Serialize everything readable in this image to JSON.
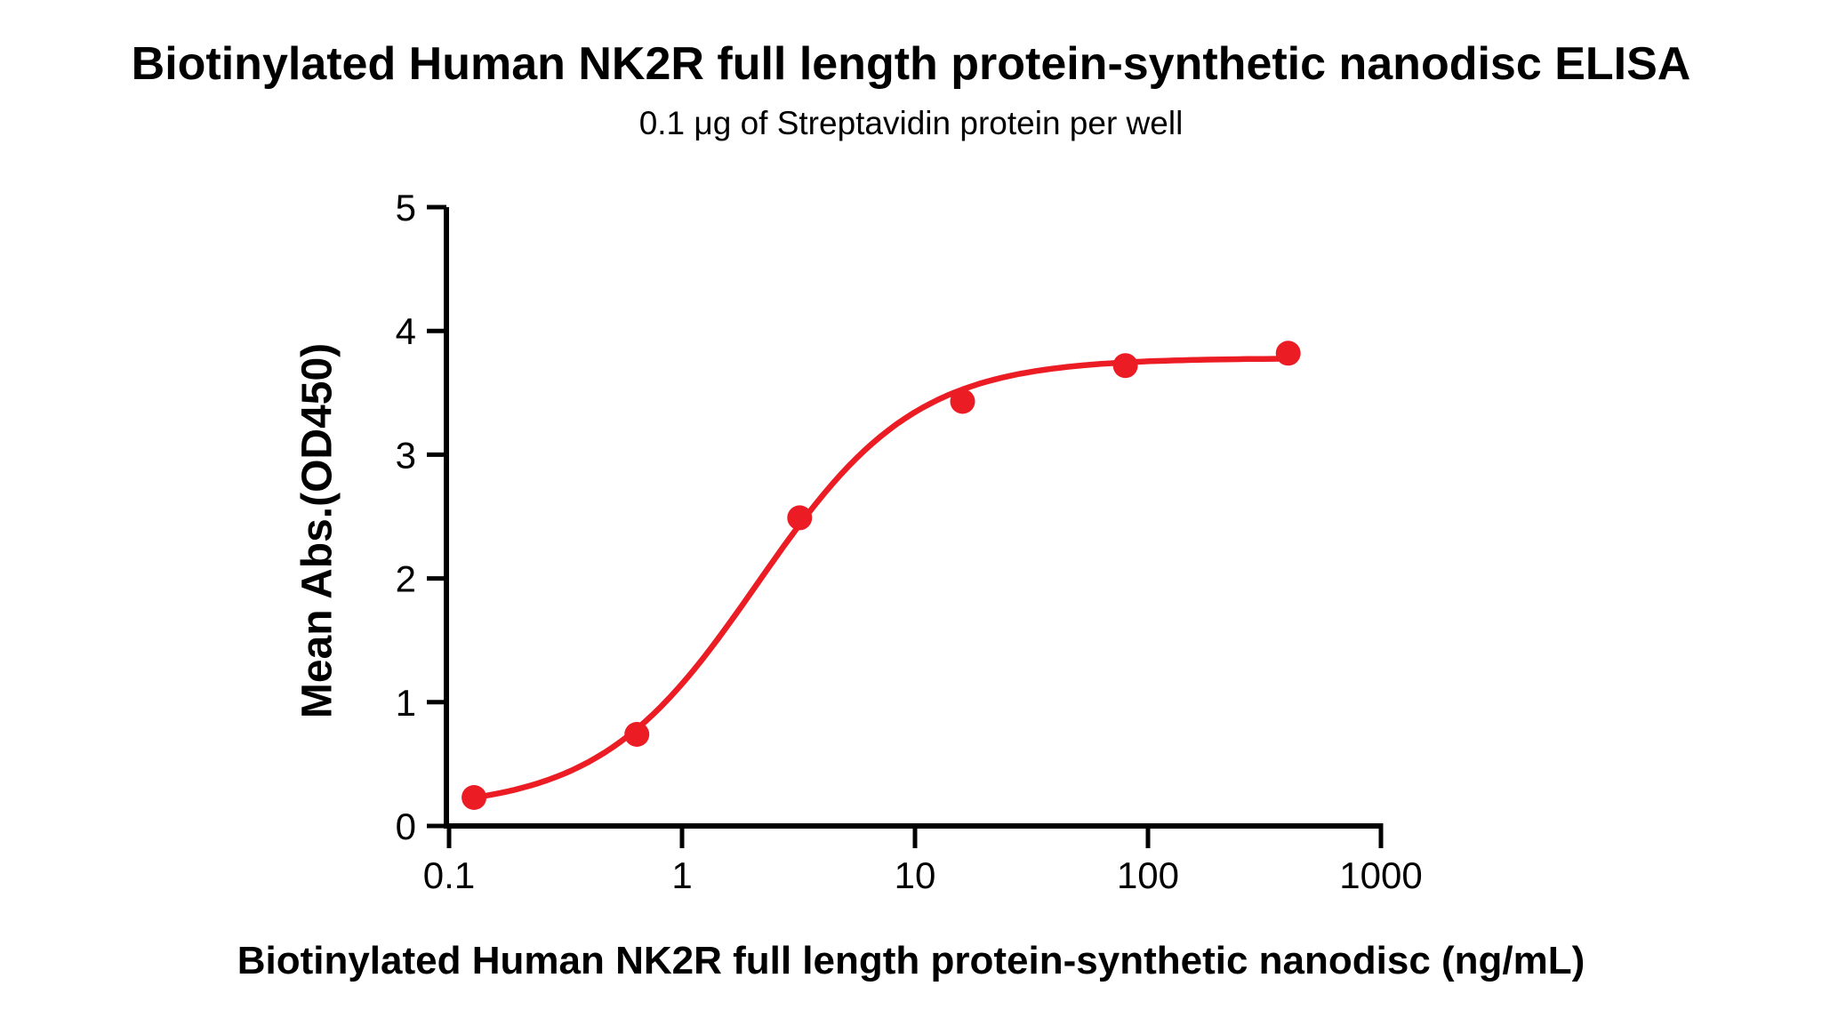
{
  "title": "Biotinylated Human NK2R full length protein-synthetic nanodisc ELISA",
  "subtitle": "0.1 μg of Streptavidin protein per well",
  "chart_data": {
    "type": "scatter",
    "title": "Biotinylated Human NK2R full length protein-synthetic nanodisc ELISA",
    "subtitle": "0.1 μg of Streptavidin protein per well",
    "xlabel": "Biotinylated Human NK2R full length protein-synthetic nanodisc (ng/mL)",
    "ylabel": "Mean Abs.(OD450)",
    "x_scale": "log",
    "xlim": [
      0.1,
      1000
    ],
    "ylim": [
      0,
      5
    ],
    "x_ticks": [
      0.1,
      1,
      10,
      100,
      1000
    ],
    "x_tick_labels": [
      "0.1",
      "1",
      "10",
      "100",
      "1000"
    ],
    "y_ticks": [
      0,
      1,
      2,
      3,
      4,
      5
    ],
    "y_tick_labels": [
      "0",
      "1",
      "2",
      "3",
      "4",
      "5"
    ],
    "grid": false,
    "legend": "none",
    "series": [
      {
        "name": "Biotinylated Human NK2R full length protein-synthetic nanodisc",
        "x": [
          0.128,
          0.64,
          3.2,
          16,
          80,
          400
        ],
        "y": [
          0.23,
          0.74,
          2.49,
          3.43,
          3.72,
          3.82
        ]
      }
    ],
    "fit_curve": {
      "model": "4PL",
      "bottom": 0.13,
      "top": 3.78,
      "ec50": 2.1,
      "hill": 1.28,
      "x_start": 0.128,
      "x_end": 400
    },
    "marker_color": "#EC1C24",
    "line_color": "#EC1C24",
    "axis_color": "#000000"
  }
}
